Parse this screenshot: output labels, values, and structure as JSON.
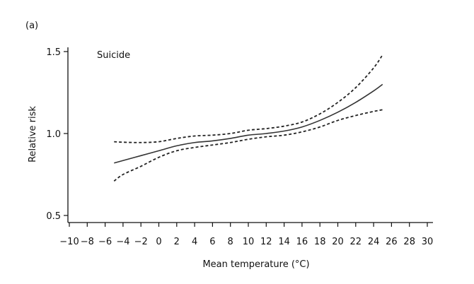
{
  "chart_data": {
    "type": "line",
    "panel_label": "(a)",
    "title": "Suicide",
    "xlabel": "Mean temperature (°C)",
    "ylabel": "Relative risk",
    "xlim": [
      -10,
      30
    ],
    "ylim": [
      0.5,
      1.5
    ],
    "x_ticks": [
      -10,
      -8,
      -6,
      -4,
      -2,
      0,
      2,
      4,
      6,
      8,
      10,
      12,
      14,
      16,
      18,
      20,
      22,
      24,
      26,
      28,
      30
    ],
    "x_tick_labels": [
      "−10",
      "−8",
      "−6",
      "−4",
      "−2",
      "0",
      "2",
      "4",
      "6",
      "8",
      "10",
      "12",
      "14",
      "16",
      "18",
      "20",
      "22",
      "24",
      "26",
      "28",
      "30"
    ],
    "y_ticks": [
      0.5,
      1.0,
      1.5
    ],
    "y_tick_labels": [
      "0.5",
      "1.0",
      "1.5"
    ],
    "grid": false,
    "x": [
      -5,
      -4,
      -2,
      0,
      2,
      4,
      6,
      8,
      10,
      12,
      14,
      16,
      18,
      20,
      22,
      24,
      25
    ],
    "series": [
      {
        "style": "solid",
        "values": [
          0.82,
          0.835,
          0.865,
          0.895,
          0.925,
          0.945,
          0.955,
          0.97,
          0.99,
          1.0,
          1.015,
          1.04,
          1.08,
          1.13,
          1.19,
          1.26,
          1.3
        ]
      },
      {
        "style": "dashed",
        "values": [
          0.95,
          0.947,
          0.945,
          0.95,
          0.97,
          0.985,
          0.99,
          1.0,
          1.02,
          1.03,
          1.045,
          1.07,
          1.12,
          1.19,
          1.28,
          1.4,
          1.48
        ]
      },
      {
        "style": "dashed",
        "values": [
          0.71,
          0.75,
          0.8,
          0.855,
          0.895,
          0.915,
          0.93,
          0.945,
          0.965,
          0.98,
          0.99,
          1.01,
          1.04,
          1.08,
          1.11,
          1.135,
          1.145
        ]
      }
    ]
  }
}
